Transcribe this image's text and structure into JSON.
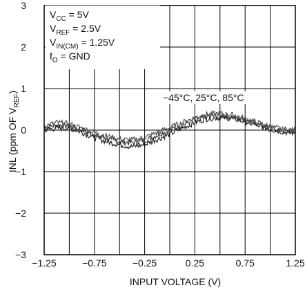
{
  "chart_data": {
    "type": "line",
    "xlabel": "INPUT VOLTAGE (V)",
    "ylabel": {
      "main": "INL (ppm OF V",
      "sub": "REF",
      "close": ")"
    },
    "xlim": [
      -1.25,
      1.25
    ],
    "ylim": [
      -3,
      3
    ],
    "x_ticks": [
      -1.25,
      -0.75,
      -0.25,
      0.25,
      0.75,
      1.25
    ],
    "x_tick_labels": [
      "−1.25",
      "−0.75",
      "−0.25",
      "0.25",
      "0.75",
      "1.25"
    ],
    "y_ticks": [
      -3,
      -2,
      -1,
      0,
      1,
      2,
      3
    ],
    "y_tick_labels": [
      "−3",
      "−2",
      "−1",
      "0",
      "1",
      "2",
      "3"
    ],
    "grid": true,
    "x_minor_grid_step": 0.25,
    "conditions": [
      {
        "text": "V",
        "sub": "CC",
        "rest": " = 5V"
      },
      {
        "text": "V",
        "sub": "REF",
        "rest": " = 2.5V"
      },
      {
        "text": "V",
        "sub": "IN(CM)",
        "rest": " = 1.25V"
      },
      {
        "text": "f",
        "sub": "O",
        "rest": " = GND"
      }
    ],
    "series_annotation": "−45°C, 25°C, 85°C",
    "series": [
      {
        "x": [
          -1.25,
          -1.125,
          -1.0,
          -0.875,
          -0.75,
          -0.625,
          -0.5,
          -0.375,
          -0.25,
          -0.125,
          0.0,
          0.125,
          0.25,
          0.375,
          0.5,
          0.625,
          0.75,
          0.875,
          1.0,
          1.125,
          1.25
        ],
        "values": [
          0.05,
          0.12,
          0.1,
          0.0,
          -0.12,
          -0.2,
          -0.28,
          -0.3,
          -0.25,
          -0.12,
          0.0,
          0.12,
          0.25,
          0.33,
          0.35,
          0.32,
          0.25,
          0.15,
          0.05,
          -0.02,
          -0.05
        ],
        "color": "#333333"
      },
      {
        "x": [
          -1.25,
          -1.125,
          -1.0,
          -0.875,
          -0.75,
          -0.625,
          -0.5,
          -0.375,
          -0.25,
          -0.125,
          0.0,
          0.125,
          0.25,
          0.375,
          0.5,
          0.625,
          0.75,
          0.875,
          1.0,
          1.125,
          1.25
        ],
        "values": [
          0.0,
          0.05,
          0.05,
          -0.05,
          -0.18,
          -0.28,
          -0.35,
          -0.4,
          -0.35,
          -0.22,
          -0.1,
          0.05,
          0.18,
          0.28,
          0.3,
          0.28,
          0.2,
          0.12,
          0.02,
          -0.04,
          -0.08
        ],
        "color": "#222222"
      },
      {
        "x": [
          -1.25,
          -1.125,
          -1.0,
          -0.875,
          -0.75,
          -0.625,
          -0.5,
          -0.375,
          -0.25,
          -0.125,
          0.0,
          0.125,
          0.25,
          0.375,
          0.5,
          0.625,
          0.75,
          0.875,
          1.0,
          1.125,
          1.25
        ],
        "values": [
          0.1,
          0.18,
          0.15,
          0.05,
          -0.06,
          -0.14,
          -0.22,
          -0.24,
          -0.18,
          -0.06,
          0.06,
          0.18,
          0.3,
          0.38,
          0.4,
          0.36,
          0.28,
          0.18,
          0.08,
          0.02,
          0.0
        ],
        "color": "#555555"
      }
    ]
  }
}
